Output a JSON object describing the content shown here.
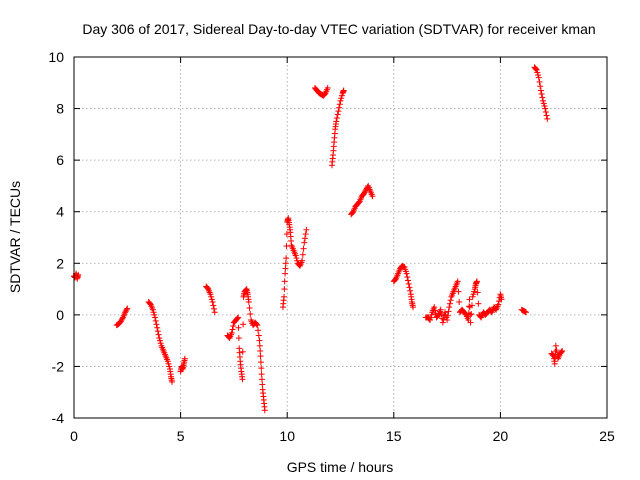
{
  "chart_data": {
    "type": "scatter",
    "title": "Day 306 of 2017, Sidereal Day-to-day VTEC variation (SDTVAR) for receiver kman",
    "xlabel": "GPS time / hours",
    "ylabel": "SDTVAR / TECUs",
    "xlim": [
      0,
      25
    ],
    "ylim": [
      -4,
      10
    ],
    "xticks": [
      0,
      5,
      10,
      15,
      20,
      25
    ],
    "yticks": [
      -4,
      -2,
      0,
      2,
      4,
      6,
      8,
      10
    ],
    "grid": true,
    "marker": "+",
    "series": [
      {
        "name": "SDTVAR",
        "color": "#ff0000",
        "segments": [
          [
            [
              0.0,
              1.5
            ],
            [
              0.05,
              1.45
            ],
            [
              0.1,
              1.6
            ],
            [
              0.15,
              1.4
            ],
            [
              0.2,
              1.55
            ]
          ],
          [
            [
              2.0,
              -0.4
            ],
            [
              2.1,
              -0.35
            ],
            [
              2.2,
              -0.25
            ],
            [
              2.3,
              -0.1
            ],
            [
              2.4,
              0.1
            ],
            [
              2.5,
              0.25
            ]
          ],
          [
            [
              3.5,
              0.5
            ],
            [
              3.6,
              0.4
            ],
            [
              3.7,
              0.2
            ],
            [
              3.8,
              -0.1
            ],
            [
              3.9,
              -0.5
            ],
            [
              4.0,
              -0.9
            ],
            [
              4.1,
              -1.2
            ],
            [
              4.2,
              -1.4
            ],
            [
              4.3,
              -1.6
            ],
            [
              4.4,
              -1.8
            ],
            [
              4.5,
              -2.1
            ],
            [
              4.55,
              -2.4
            ],
            [
              4.6,
              -2.6
            ]
          ],
          [
            [
              5.0,
              -2.2
            ],
            [
              5.05,
              -2.0
            ],
            [
              5.1,
              -2.1
            ],
            [
              5.15,
              -1.9
            ],
            [
              5.2,
              -1.7
            ]
          ],
          [
            [
              6.2,
              1.1
            ],
            [
              6.3,
              1.0
            ],
            [
              6.4,
              0.8
            ],
            [
              6.5,
              0.5
            ],
            [
              6.6,
              0.1
            ]
          ],
          [
            [
              7.2,
              -0.8
            ],
            [
              7.3,
              -0.9
            ],
            [
              7.4,
              -0.7
            ],
            [
              7.5,
              -0.3
            ],
            [
              7.6,
              -0.2
            ],
            [
              7.7,
              -0.1
            ],
            [
              7.75,
              -1.3
            ],
            [
              7.8,
              -1.8
            ],
            [
              7.85,
              -2.2
            ],
            [
              7.9,
              -2.5
            ],
            [
              7.95,
              0.7
            ],
            [
              8.0,
              0.9
            ],
            [
              8.1,
              1.0
            ],
            [
              8.15,
              0.8
            ],
            [
              8.2,
              0.5
            ],
            [
              8.3,
              -0.2
            ],
            [
              8.4,
              -0.4
            ],
            [
              8.5,
              -0.3
            ],
            [
              8.6,
              -0.4
            ],
            [
              8.7,
              -1.0
            ],
            [
              8.75,
              -1.6
            ],
            [
              8.8,
              -2.3
            ],
            [
              8.85,
              -2.9
            ],
            [
              8.9,
              -3.3
            ],
            [
              8.95,
              -3.7
            ]
          ],
          [
            [
              9.8,
              0.3
            ],
            [
              9.85,
              0.7
            ],
            [
              9.9,
              1.6
            ],
            [
              9.95,
              2.2
            ],
            [
              10.0,
              3.6
            ],
            [
              10.05,
              3.75
            ],
            [
              10.1,
              3.5
            ],
            [
              10.15,
              3.2
            ],
            [
              10.2,
              2.7
            ],
            [
              10.3,
              2.5
            ],
            [
              10.4,
              2.3
            ],
            [
              10.5,
              2.0
            ],
            [
              10.6,
              1.9
            ],
            [
              10.7,
              2.1
            ],
            [
              10.8,
              2.8
            ],
            [
              10.9,
              3.3
            ]
          ],
          [
            [
              11.3,
              8.8
            ],
            [
              11.4,
              8.7
            ],
            [
              11.5,
              8.6
            ],
            [
              11.6,
              8.55
            ],
            [
              11.7,
              8.5
            ],
            [
              11.8,
              8.6
            ],
            [
              11.9,
              8.8
            ]
          ],
          [
            [
              12.1,
              5.8
            ],
            [
              12.15,
              6.2
            ],
            [
              12.2,
              6.7
            ],
            [
              12.25,
              7.2
            ],
            [
              12.3,
              7.5
            ],
            [
              12.4,
              7.9
            ],
            [
              12.5,
              8.3
            ],
            [
              12.6,
              8.6
            ],
            [
              12.65,
              8.7
            ]
          ],
          [
            [
              13.0,
              3.9
            ],
            [
              13.1,
              4.0
            ],
            [
              13.2,
              4.2
            ],
            [
              13.3,
              4.3
            ],
            [
              13.4,
              4.4
            ],
            [
              13.5,
              4.6
            ],
            [
              13.6,
              4.7
            ],
            [
              13.7,
              4.85
            ],
            [
              13.8,
              5.0
            ],
            [
              13.9,
              4.8
            ],
            [
              14.0,
              4.6
            ]
          ],
          [
            [
              15.0,
              1.3
            ],
            [
              15.1,
              1.4
            ],
            [
              15.2,
              1.6
            ],
            [
              15.3,
              1.8
            ],
            [
              15.4,
              1.9
            ],
            [
              15.5,
              1.85
            ],
            [
              15.6,
              1.6
            ],
            [
              15.7,
              1.2
            ],
            [
              15.8,
              0.8
            ],
            [
              15.85,
              0.5
            ],
            [
              15.9,
              0.3
            ]
          ],
          [
            [
              16.5,
              -0.1
            ],
            [
              16.6,
              -0.1
            ],
            [
              16.7,
              -0.2
            ],
            [
              16.8,
              0.1
            ],
            [
              16.9,
              0.3
            ],
            [
              17.0,
              -0.1
            ],
            [
              17.1,
              0.0
            ],
            [
              17.2,
              0.2
            ],
            [
              17.3,
              -0.3
            ],
            [
              17.4,
              0.1
            ],
            [
              17.5,
              -0.2
            ],
            [
              17.6,
              0.3
            ],
            [
              17.7,
              0.7
            ],
            [
              17.8,
              0.9
            ],
            [
              17.9,
              1.1
            ],
            [
              18.0,
              1.3
            ],
            [
              18.1,
              0.1
            ],
            [
              18.2,
              0.2
            ],
            [
              18.3,
              0.1
            ],
            [
              18.4,
              0.0
            ],
            [
              18.5,
              -0.2
            ],
            [
              18.55,
              0.6
            ],
            [
              18.6,
              -0.3
            ],
            [
              18.7,
              0.7
            ],
            [
              18.8,
              1.0
            ],
            [
              18.85,
              1.2
            ],
            [
              18.9,
              1.3
            ],
            [
              19.0,
              0.0
            ],
            [
              19.1,
              -0.1
            ],
            [
              19.2,
              0.1
            ],
            [
              19.3,
              0.0
            ],
            [
              19.4,
              0.1
            ],
            [
              19.5,
              0.2
            ],
            [
              19.6,
              0.1
            ],
            [
              19.7,
              0.3
            ],
            [
              19.8,
              0.2
            ],
            [
              19.9,
              0.4
            ],
            [
              20.0,
              0.8
            ],
            [
              20.05,
              0.6
            ]
          ],
          [
            [
              21.0,
              0.2
            ],
            [
              21.1,
              0.15
            ],
            [
              21.2,
              0.1
            ]
          ],
          [
            [
              21.6,
              9.6
            ],
            [
              21.7,
              9.5
            ],
            [
              21.8,
              9.2
            ],
            [
              21.9,
              8.7
            ],
            [
              22.0,
              8.3
            ],
            [
              22.1,
              8.0
            ],
            [
              22.2,
              7.6
            ]
          ],
          [
            [
              22.4,
              -1.5
            ],
            [
              22.5,
              -1.6
            ],
            [
              22.55,
              -1.9
            ],
            [
              22.6,
              -1.2
            ],
            [
              22.7,
              -1.7
            ],
            [
              22.8,
              -1.5
            ],
            [
              22.9,
              -1.4
            ]
          ]
        ]
      }
    ]
  }
}
